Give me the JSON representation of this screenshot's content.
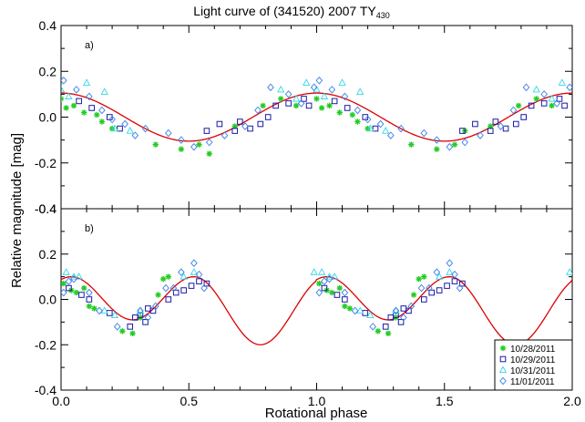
{
  "figure": {
    "title_main": "Light curve of (341520) 2007 TY",
    "title_sub": "430",
    "ylabel": "Relative magnitude [mag]",
    "xlabel": "Rotational phase"
  },
  "colors": {
    "axis": "#000000",
    "fit": "#dd0000",
    "night1": "#22cc22",
    "night2": "#1a1aa8",
    "night3": "#33d6e8",
    "night4": "#3a7fe6"
  },
  "legend": [
    {
      "label": "10/28/2011",
      "marker": "asterisk",
      "color_key": "night1"
    },
    {
      "label": "10/29/2011",
      "marker": "square",
      "color_key": "night2"
    },
    {
      "label": "10/31/2011",
      "marker": "triangle",
      "color_key": "night3"
    },
    {
      "label": "11/01/2011",
      "marker": "diamond",
      "color_key": "night4"
    }
  ],
  "chart_data": [
    {
      "type": "scatter",
      "panel_label": "a)",
      "title": "Light curve of (341520) 2007 TY430",
      "xlabel": "",
      "ylabel": "Relative magnitude [mag]",
      "xlim": [
        0.0,
        2.0
      ],
      "ylim": [
        -0.4,
        0.4
      ],
      "xticks": [
        "0.0",
        "0.5",
        "1.0",
        "1.5",
        "2.0"
      ],
      "yticks": [
        "-0.4",
        "-0.2",
        "0.0",
        "0.2",
        "0.4"
      ],
      "fit": {
        "kind": "single-peaked",
        "amplitude": 0.105,
        "min_phase": 0.5,
        "period": 1.0
      },
      "series": [
        {
          "name": "10/28/2011",
          "points": [
            [
              0.0,
              0.08
            ],
            [
              0.02,
              0.04
            ],
            [
              0.05,
              0.05
            ],
            [
              0.09,
              0.02
            ],
            [
              0.14,
              0.01
            ],
            [
              0.16,
              -0.02
            ],
            [
              0.2,
              -0.05
            ],
            [
              0.37,
              -0.12
            ],
            [
              0.47,
              -0.14
            ],
            [
              0.54,
              -0.12
            ],
            [
              0.58,
              -0.16
            ],
            [
              0.68,
              -0.04
            ],
            [
              0.79,
              0.05
            ],
            [
              0.86,
              0.08
            ],
            [
              0.92,
              0.05
            ],
            [
              1.0,
              0.08
            ],
            [
              1.02,
              0.04
            ],
            [
              1.05,
              0.05
            ],
            [
              1.09,
              0.02
            ],
            [
              1.14,
              0.01
            ],
            [
              1.16,
              -0.02
            ],
            [
              1.2,
              -0.05
            ],
            [
              1.37,
              -0.12
            ],
            [
              1.47,
              -0.14
            ],
            [
              1.54,
              -0.12
            ],
            [
              1.58,
              -0.06
            ],
            [
              1.68,
              -0.04
            ],
            [
              1.79,
              0.05
            ],
            [
              1.86,
              0.08
            ],
            [
              1.92,
              0.05
            ]
          ]
        },
        {
          "name": "10/29/2011",
          "points": [
            [
              0.07,
              0.07
            ],
            [
              0.12,
              0.04
            ],
            [
              0.19,
              0.0
            ],
            [
              0.23,
              -0.05
            ],
            [
              0.57,
              -0.06
            ],
            [
              0.62,
              -0.03
            ],
            [
              0.68,
              -0.06
            ],
            [
              0.7,
              -0.02
            ],
            [
              0.74,
              -0.05
            ],
            [
              0.78,
              -0.03
            ],
            [
              0.81,
              0.0
            ],
            [
              0.84,
              0.05
            ],
            [
              0.89,
              0.06
            ],
            [
              0.95,
              0.08
            ],
            [
              0.97,
              0.05
            ],
            [
              1.07,
              0.07
            ],
            [
              1.12,
              0.04
            ],
            [
              1.19,
              0.0
            ],
            [
              1.23,
              -0.05
            ],
            [
              1.57,
              -0.06
            ],
            [
              1.62,
              -0.03
            ],
            [
              1.68,
              -0.06
            ],
            [
              1.7,
              -0.02
            ],
            [
              1.74,
              -0.05
            ],
            [
              1.78,
              -0.03
            ],
            [
              1.81,
              0.0
            ],
            [
              1.84,
              0.05
            ],
            [
              1.89,
              0.06
            ],
            [
              1.95,
              0.08
            ],
            [
              1.97,
              0.05
            ]
          ]
        },
        {
          "name": "10/31/2011",
          "points": [
            [
              0.0,
              0.12
            ],
            [
              0.03,
              0.09
            ],
            [
              0.1,
              0.15
            ],
            [
              0.17,
              0.11
            ],
            [
              0.21,
              -0.05
            ],
            [
              0.27,
              -0.06
            ],
            [
              0.86,
              0.12
            ],
            [
              0.92,
              0.08
            ],
            [
              0.96,
              0.15
            ],
            [
              1.0,
              0.12
            ],
            [
              1.03,
              0.09
            ],
            [
              1.1,
              0.15
            ],
            [
              1.17,
              0.11
            ],
            [
              1.21,
              -0.05
            ],
            [
              1.27,
              -0.06
            ],
            [
              1.86,
              0.12
            ],
            [
              1.92,
              0.08
            ],
            [
              1.96,
              0.15
            ]
          ]
        },
        {
          "name": "11/01/2011",
          "points": [
            [
              0.01,
              0.16
            ],
            [
              0.06,
              0.12
            ],
            [
              0.11,
              0.09
            ],
            [
              0.16,
              0.03
            ],
            [
              0.2,
              -0.01
            ],
            [
              0.25,
              -0.03
            ],
            [
              0.29,
              -0.08
            ],
            [
              0.33,
              -0.05
            ],
            [
              0.42,
              -0.07
            ],
            [
              0.47,
              -0.1
            ],
            [
              0.52,
              -0.13
            ],
            [
              0.58,
              -0.11
            ],
            [
              0.64,
              -0.08
            ],
            [
              0.72,
              -0.04
            ],
            [
              0.77,
              0.03
            ],
            [
              0.82,
              0.13
            ],
            [
              0.89,
              0.1
            ],
            [
              0.94,
              0.06
            ],
            [
              0.99,
              0.13
            ],
            [
              1.01,
              0.16
            ],
            [
              1.06,
              0.12
            ],
            [
              1.11,
              0.09
            ],
            [
              1.16,
              0.03
            ],
            [
              1.2,
              -0.01
            ],
            [
              1.25,
              -0.03
            ],
            [
              1.29,
              -0.08
            ],
            [
              1.33,
              -0.05
            ],
            [
              1.42,
              -0.07
            ],
            [
              1.47,
              -0.1
            ],
            [
              1.52,
              -0.13
            ],
            [
              1.58,
              -0.11
            ],
            [
              1.64,
              -0.08
            ],
            [
              1.72,
              -0.04
            ],
            [
              1.77,
              0.03
            ],
            [
              1.82,
              0.13
            ],
            [
              1.89,
              0.1
            ],
            [
              1.94,
              0.06
            ],
            [
              1.99,
              0.13
            ]
          ]
        }
      ]
    },
    {
      "type": "scatter",
      "panel_label": "b)",
      "xlabel": "Rotational phase",
      "ylabel": "Relative magnitude [mag]",
      "xlim": [
        0.0,
        2.0
      ],
      "ylim": [
        -0.4,
        0.4
      ],
      "xticks": [
        "0.0",
        "0.5",
        "1.0",
        "1.5",
        "2.0"
      ],
      "yticks": [
        "-0.4",
        "-0.2",
        "0.0",
        "0.2",
        "0.4"
      ],
      "fit": {
        "kind": "double-peaked",
        "main_amplitude": 0.1,
        "second_min": -0.2,
        "period": 1.0
      },
      "series": [
        {
          "name": "10/28/2011",
          "points": [
            [
              0.01,
              0.07
            ],
            [
              0.04,
              0.04
            ],
            [
              0.06,
              0.03
            ],
            [
              0.09,
              0.05
            ],
            [
              0.11,
              -0.03
            ],
            [
              0.13,
              -0.04
            ],
            [
              0.24,
              -0.14
            ],
            [
              0.28,
              -0.15
            ],
            [
              0.31,
              -0.08
            ],
            [
              0.38,
              0.02
            ],
            [
              0.4,
              0.09
            ],
            [
              0.42,
              0.1
            ],
            [
              1.01,
              0.07
            ],
            [
              1.04,
              0.04
            ],
            [
              1.06,
              0.03
            ],
            [
              1.09,
              0.05
            ],
            [
              1.11,
              -0.03
            ],
            [
              1.13,
              -0.04
            ],
            [
              1.24,
              -0.14
            ],
            [
              1.28,
              -0.15
            ],
            [
              1.31,
              -0.08
            ],
            [
              1.38,
              0.02
            ],
            [
              1.4,
              0.09
            ],
            [
              1.42,
              0.1
            ]
          ]
        },
        {
          "name": "10/29/2011",
          "points": [
            [
              0.03,
              0.05
            ],
            [
              0.08,
              0.02
            ],
            [
              0.11,
              0.0
            ],
            [
              0.19,
              -0.06
            ],
            [
              0.27,
              -0.12
            ],
            [
              0.29,
              -0.08
            ],
            [
              0.31,
              -0.07
            ],
            [
              0.33,
              -0.1
            ],
            [
              0.34,
              -0.04
            ],
            [
              0.36,
              -0.05
            ],
            [
              0.42,
              0.0
            ],
            [
              0.45,
              0.03
            ],
            [
              0.48,
              0.04
            ],
            [
              0.51,
              0.06
            ],
            [
              0.54,
              0.08
            ],
            [
              0.57,
              0.07
            ],
            [
              1.03,
              0.05
            ],
            [
              1.08,
              0.02
            ],
            [
              1.11,
              0.0
            ],
            [
              1.19,
              -0.06
            ],
            [
              1.27,
              -0.12
            ],
            [
              1.29,
              -0.08
            ],
            [
              1.31,
              -0.07
            ],
            [
              1.33,
              -0.1
            ],
            [
              1.34,
              -0.04
            ],
            [
              1.36,
              -0.05
            ],
            [
              1.42,
              0.0
            ],
            [
              1.45,
              0.03
            ],
            [
              1.48,
              0.04
            ],
            [
              1.51,
              0.06
            ],
            [
              1.54,
              0.08
            ],
            [
              1.57,
              0.07
            ]
          ]
        },
        {
          "name": "10/31/2011",
          "points": [
            [
              0.02,
              0.12
            ],
            [
              0.05,
              0.1
            ],
            [
              0.07,
              0.1
            ],
            [
              0.17,
              -0.05
            ],
            [
              0.21,
              -0.07
            ],
            [
              0.31,
              -0.05
            ],
            [
              0.48,
              0.1
            ],
            [
              0.52,
              0.12
            ],
            [
              0.99,
              0.12
            ],
            [
              1.02,
              0.12
            ],
            [
              1.05,
              0.1
            ],
            [
              1.07,
              0.1
            ],
            [
              1.17,
              -0.05
            ],
            [
              1.21,
              -0.07
            ],
            [
              1.31,
              -0.05
            ],
            [
              1.48,
              0.1
            ],
            [
              1.52,
              0.12
            ],
            [
              1.99,
              0.12
            ]
          ]
        },
        {
          "name": "11/01/2011",
          "points": [
            [
              0.01,
              0.03
            ],
            [
              0.03,
              0.08
            ],
            [
              0.05,
              0.09
            ],
            [
              0.11,
              0.03
            ],
            [
              0.15,
              -0.05
            ],
            [
              0.22,
              -0.12
            ],
            [
              0.31,
              -0.05
            ],
            [
              0.34,
              -0.08
            ],
            [
              0.37,
              -0.03
            ],
            [
              0.41,
              0.05
            ],
            [
              0.44,
              0.05
            ],
            [
              0.47,
              0.12
            ],
            [
              0.52,
              0.16
            ],
            [
              0.54,
              0.11
            ],
            [
              0.56,
              0.05
            ],
            [
              1.01,
              0.03
            ],
            [
              1.03,
              0.08
            ],
            [
              1.05,
              0.09
            ],
            [
              1.11,
              0.03
            ],
            [
              1.15,
              -0.05
            ],
            [
              1.22,
              -0.12
            ],
            [
              1.31,
              -0.05
            ],
            [
              1.34,
              -0.08
            ],
            [
              1.37,
              -0.03
            ],
            [
              1.41,
              0.05
            ],
            [
              1.44,
              0.05
            ],
            [
              1.47,
              0.12
            ],
            [
              1.52,
              0.16
            ],
            [
              1.54,
              0.11
            ],
            [
              1.56,
              0.05
            ]
          ]
        }
      ]
    }
  ]
}
